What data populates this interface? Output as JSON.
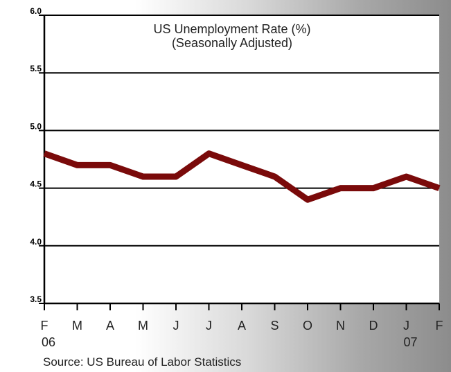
{
  "chart_data": {
    "type": "line",
    "title": "US Unemployment Rate (%)",
    "subtitle": "(Seasonally Adjusted)",
    "source": "Source: US Bureau of Labor Statistics",
    "categories": [
      "F",
      "M",
      "A",
      "M",
      "J",
      "J",
      "A",
      "S",
      "O",
      "N",
      "D",
      "J",
      "F"
    ],
    "year_labels": [
      {
        "index": 0,
        "text": "06"
      },
      {
        "index": 11,
        "text": "07"
      }
    ],
    "series": [
      {
        "values": [
          4.8,
          4.7,
          4.7,
          4.6,
          4.6,
          4.8,
          4.7,
          4.6,
          4.4,
          4.5,
          4.5,
          4.6,
          4.5
        ]
      }
    ],
    "ylim": [
      3.5,
      6.0
    ],
    "yticks": [
      "3.5",
      "4.0",
      "4.5",
      "5.0",
      "5.5",
      "6.0"
    ],
    "grid": true,
    "line_color": "#7a0a0a"
  }
}
